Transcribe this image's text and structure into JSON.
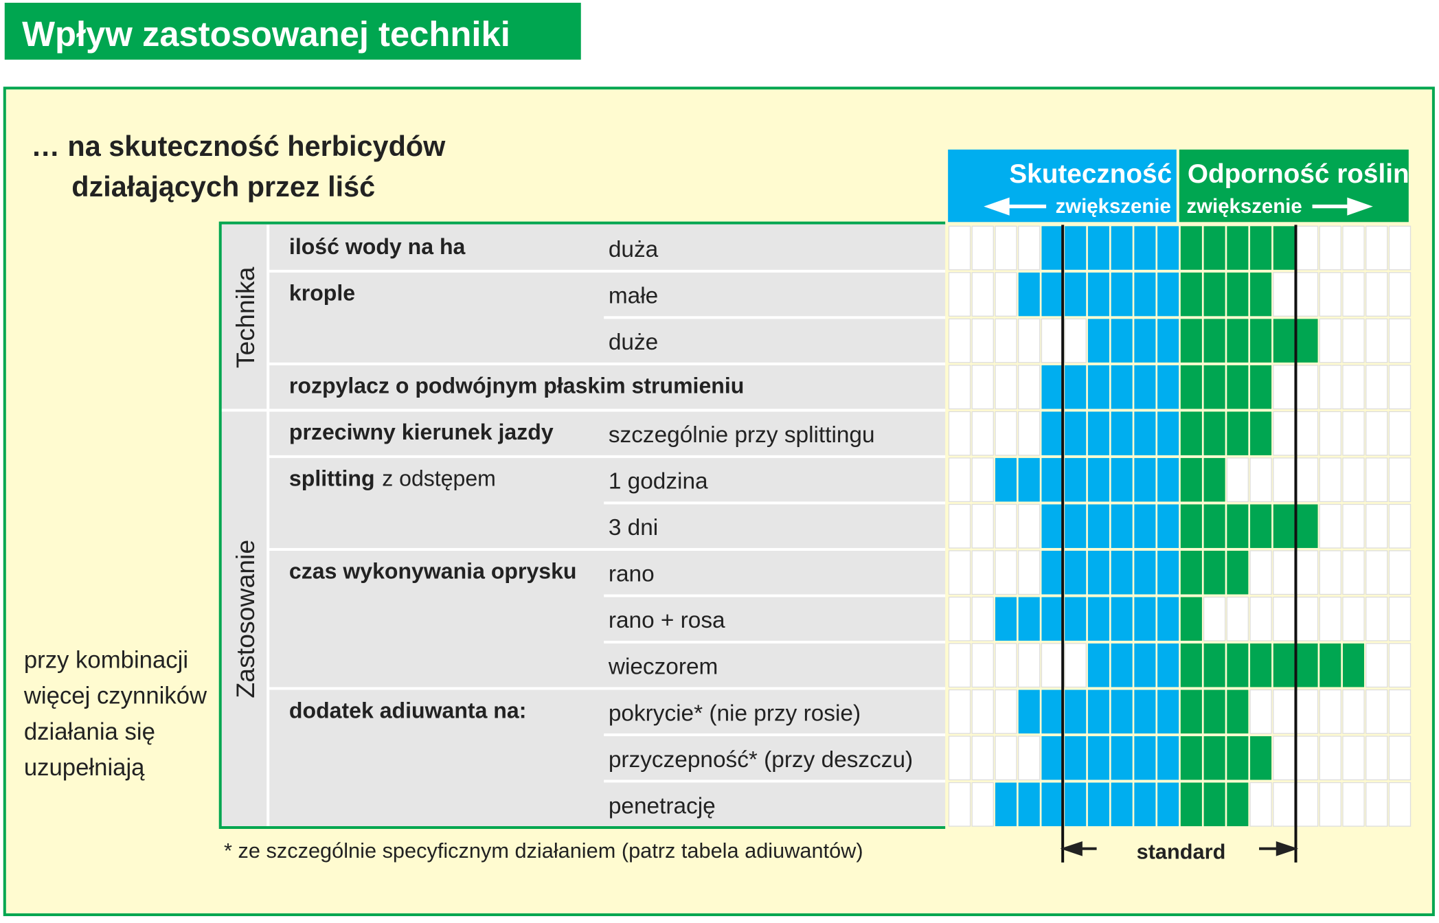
{
  "title": "Wpływ zastosowanej techniki",
  "subtitle": [
    "… na skuteczność herbicydów",
    "działających przez liść"
  ],
  "header": {
    "left": "Skuteczność",
    "left_sub": "zwiększenie",
    "right": "Odporność roślin",
    "right_sub": "zwiększenie"
  },
  "groups": [
    {
      "name": "Technika",
      "rows": 4
    },
    {
      "name": "Zastosowanie",
      "rows": 9
    }
  ],
  "rows": [
    {
      "label": "ilość wody na ha",
      "detail": "duża",
      "blue": 6,
      "green": 5
    },
    {
      "label": "krople",
      "detail": "małe",
      "blue": 7,
      "green": 4
    },
    {
      "detail": "duże",
      "blue": 4,
      "green": 6
    },
    {
      "label": "rozpylacz o podwójnym płaskim strumieniu",
      "blue": 6,
      "green": 4
    },
    {
      "label": "przeciwny kierunek jazdy",
      "detail": "szczególnie przy splittingu",
      "blue": 6,
      "green": 4
    },
    {
      "label": "splitting",
      "label_rest": "z odstępem",
      "detail": "1 godzina",
      "blue": 8,
      "green": 2
    },
    {
      "detail": "3 dni",
      "blue": 6,
      "green": 6
    },
    {
      "label": "czas wykonywania oprysku",
      "detail": "rano",
      "blue": 6,
      "green": 3
    },
    {
      "detail": "rano + rosa",
      "blue": 8,
      "green": 1
    },
    {
      "detail": "wieczorem",
      "blue": 4,
      "green": 8
    },
    {
      "label": "dodatek adiuwanta na:",
      "detail": "pokrycie* (nie przy rosie)",
      "blue": 7,
      "green": 3
    },
    {
      "detail": "przyczepność* (przy deszczu)",
      "blue": 6,
      "green": 4
    },
    {
      "detail": "penetrację",
      "blue": 8,
      "green": 3
    }
  ],
  "side_note": [
    "przy kombinacji",
    "więcej czynników",
    "działania się",
    "uzupełniają"
  ],
  "footnote": "* ze szczególnie specyficznym działaniem (patrz tabela adiuwantów)",
  "standard": "standard"
}
